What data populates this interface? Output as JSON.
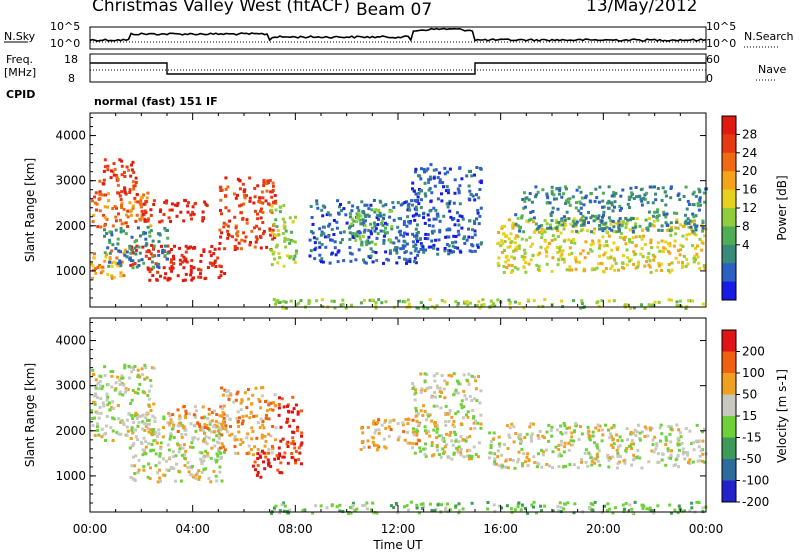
{
  "header": {
    "station": "Christmas Valley West (fitACF)",
    "beam": "Beam 07",
    "date": "13/May/2012"
  },
  "small_panels": {
    "nsky_label": "N.Sky",
    "nsearch_label": "N.Search",
    "noise_ticks": [
      "10^5",
      "10^0"
    ],
    "freq_label_1": "Freq.",
    "freq_label_2": "[MHz]",
    "freq_ticks": [
      "18",
      "8"
    ],
    "nave_label": "Nave",
    "nave_ticks": [
      "60",
      "0"
    ],
    "cpid_label": "CPID",
    "cpid_text": "normal (fast) 151 IF"
  },
  "x_axis": {
    "label": "Time UT",
    "ticks": [
      "00:00",
      "04:00",
      "08:00",
      "12:00",
      "16:00",
      "20:00",
      "00:00"
    ]
  },
  "chart_data": [
    {
      "type": "heatmap",
      "name": "power-panel",
      "ylabel": "Slant Range [km]",
      "yticks": [
        1000,
        2000,
        3000,
        4000
      ],
      "ylim": [
        200,
        4500
      ],
      "xlim_hours": [
        0,
        24
      ],
      "colorbar": {
        "label": "Power [dB]",
        "ticks": [
          "28",
          "24",
          "20",
          "16",
          "12",
          "8",
          "4"
        ],
        "colors": [
          "#1a1ae6",
          "#2c5fc4",
          "#3a8a7a",
          "#4fae55",
          "#8fcd3a",
          "#e6d21e",
          "#f5a31a",
          "#f06a14",
          "#e83a12",
          "#e01a0e"
        ]
      },
      "regions": [
        {
          "t": [
            0,
            2.4
          ],
          "r": [
            2000,
            2800
          ],
          "level": 7
        },
        {
          "t": [
            0.3,
            1.8
          ],
          "r": [
            2700,
            3500
          ],
          "level": 8
        },
        {
          "t": [
            0,
            1.5
          ],
          "r": [
            850,
            1500
          ],
          "level": 6
        },
        {
          "t": [
            1.5,
            5.2
          ],
          "r": [
            800,
            1600
          ],
          "level": 9
        },
        {
          "t": [
            2.0,
            4.6
          ],
          "r": [
            2100,
            2600
          ],
          "level": 9
        },
        {
          "t": [
            5.0,
            7.2
          ],
          "r": [
            1500,
            3100
          ],
          "level": 8
        },
        {
          "t": [
            7.0,
            8.0
          ],
          "r": [
            1100,
            2500
          ],
          "level": 4
        },
        {
          "t": [
            0.5,
            3.0
          ],
          "r": [
            1100,
            2000
          ],
          "level": 2
        },
        {
          "t": [
            8.5,
            12.8
          ],
          "r": [
            1200,
            2600
          ],
          "level": 1
        },
        {
          "t": [
            10.0,
            11.8
          ],
          "r": [
            1600,
            2400
          ],
          "level": 3
        },
        {
          "t": [
            12.5,
            15.2
          ],
          "r": [
            1400,
            3400
          ],
          "level": 1
        },
        {
          "t": [
            15.8,
            24
          ],
          "r": [
            1000,
            2200
          ],
          "level": 5
        },
        {
          "t": [
            16.5,
            24
          ],
          "r": [
            1900,
            2900
          ],
          "level": 2
        },
        {
          "t": [
            7.0,
            24
          ],
          "r": [
            200,
            400
          ],
          "level": 4
        }
      ]
    },
    {
      "type": "heatmap",
      "name": "velocity-panel",
      "ylabel": "Slant Range [km]",
      "yticks": [
        1000,
        2000,
        3000,
        4000
      ],
      "ylim": [
        200,
        4500
      ],
      "xlim_hours": [
        0,
        24
      ],
      "colorbar": {
        "label": "Velocity [m s-1]",
        "ticks": [
          "200",
          "100",
          "50",
          "15",
          "-15",
          "-50",
          "-100",
          "-200"
        ],
        "colors": [
          "#2222cc",
          "#2e6b9e",
          "#3f9a5a",
          "#6fd13a",
          "#c8c8c0",
          "#f0a020",
          "#f06010",
          "#e01414"
        ]
      },
      "regions": [
        {
          "t": [
            0,
            2.5
          ],
          "r": [
            1800,
            3500
          ],
          "level": 4
        },
        {
          "t": [
            1.5,
            5.2
          ],
          "r": [
            900,
            2400
          ],
          "level": 4
        },
        {
          "t": [
            3.0,
            5.2
          ],
          "r": [
            2000,
            2600
          ],
          "level": 5
        },
        {
          "t": [
            5.0,
            7.2
          ],
          "r": [
            1500,
            3000
          ],
          "level": 5
        },
        {
          "t": [
            7.3,
            8.2
          ],
          "r": [
            1300,
            2800
          ],
          "level": 7
        },
        {
          "t": [
            6.3,
            7.5
          ],
          "r": [
            1000,
            1600
          ],
          "level": 7
        },
        {
          "t": [
            10.5,
            12.8
          ],
          "r": [
            1600,
            2300
          ],
          "level": 5
        },
        {
          "t": [
            12.5,
            15.2
          ],
          "r": [
            1400,
            3300
          ],
          "level": 4
        },
        {
          "t": [
            15.5,
            24
          ],
          "r": [
            1200,
            2200
          ],
          "level": 4
        },
        {
          "t": [
            7.0,
            24
          ],
          "r": [
            200,
            450
          ],
          "level": 3
        }
      ]
    }
  ]
}
